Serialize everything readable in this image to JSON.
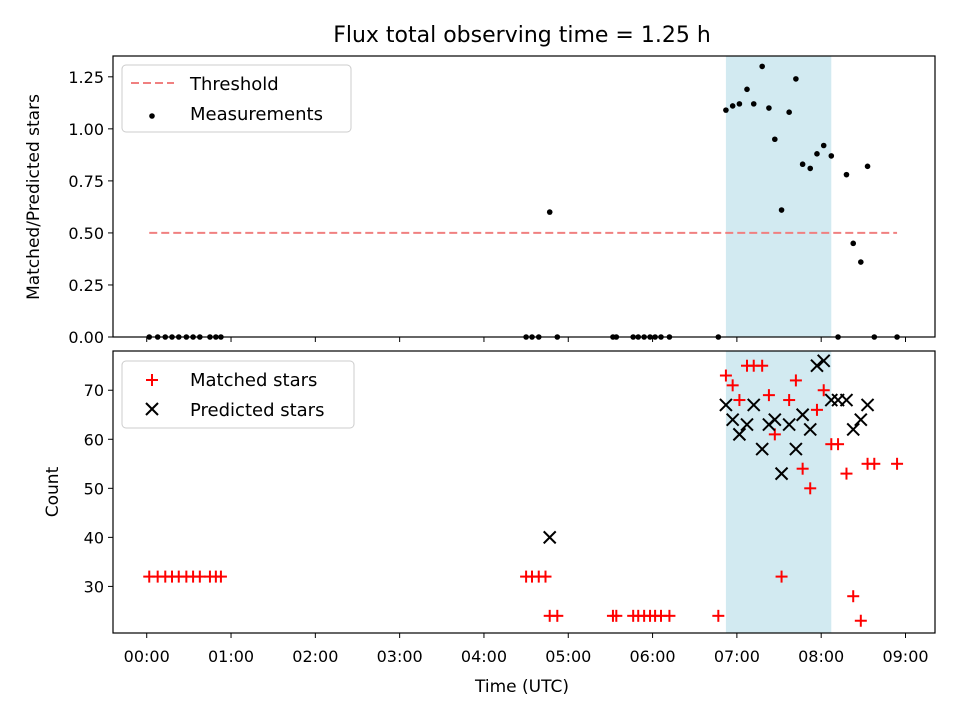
{
  "title": "Flux total observing time = 1.25 h",
  "xlabel": "Time (UTC)",
  "x_ticks": [
    "00:00",
    "01:00",
    "02:00",
    "03:00",
    "04:00",
    "05:00",
    "06:00",
    "07:00",
    "08:00",
    "09:00"
  ],
  "chart_data": [
    {
      "type": "scatter",
      "ylabel": "Matched/Predicted stars",
      "xlim_hours": [
        -0.4,
        9.35
      ],
      "ylim": [
        0,
        1.35
      ],
      "y_ticks": [
        "0.00",
        "0.25",
        "0.50",
        "0.75",
        "1.00",
        "1.25"
      ],
      "legend_position": "top-left",
      "shaded_span_hours": [
        6.87,
        8.12
      ],
      "shaded_color": "#add8e6",
      "threshold": {
        "name": "Threshold",
        "y": 0.5,
        "x_range_hours": [
          0.03,
          8.9
        ],
        "color": "#f08080",
        "style": "dashed"
      },
      "series": [
        {
          "name": "Measurements",
          "color": "#000000",
          "marker": "dot",
          "points": [
            [
              0.03,
              0
            ],
            [
              0.13,
              0
            ],
            [
              0.22,
              0
            ],
            [
              0.3,
              0
            ],
            [
              0.38,
              0
            ],
            [
              0.47,
              0
            ],
            [
              0.55,
              0
            ],
            [
              0.63,
              0
            ],
            [
              0.75,
              0
            ],
            [
              0.82,
              0
            ],
            [
              0.88,
              0
            ],
            [
              4.5,
              0
            ],
            [
              4.57,
              0
            ],
            [
              4.65,
              0
            ],
            [
              4.78,
              0.6
            ],
            [
              4.87,
              0
            ],
            [
              5.53,
              0
            ],
            [
              5.57,
              0
            ],
            [
              5.77,
              0
            ],
            [
              5.83,
              0
            ],
            [
              5.9,
              0
            ],
            [
              5.97,
              0
            ],
            [
              6.03,
              0
            ],
            [
              6.1,
              0
            ],
            [
              6.2,
              0
            ],
            [
              6.78,
              0
            ],
            [
              6.87,
              1.09
            ],
            [
              6.95,
              1.11
            ],
            [
              7.03,
              1.12
            ],
            [
              7.12,
              1.19
            ],
            [
              7.2,
              1.12
            ],
            [
              7.3,
              1.3
            ],
            [
              7.38,
              1.1
            ],
            [
              7.45,
              0.95
            ],
            [
              7.53,
              0.61
            ],
            [
              7.62,
              1.08
            ],
            [
              7.7,
              1.24
            ],
            [
              7.78,
              0.83
            ],
            [
              7.87,
              0.81
            ],
            [
              7.95,
              0.88
            ],
            [
              8.03,
              0.92
            ],
            [
              8.12,
              0.87
            ],
            [
              8.2,
              0
            ],
            [
              8.3,
              0.78
            ],
            [
              8.38,
              0.45
            ],
            [
              8.47,
              0.36
            ],
            [
              8.55,
              0.82
            ],
            [
              8.63,
              0
            ],
            [
              8.9,
              0
            ]
          ]
        }
      ]
    },
    {
      "type": "scatter",
      "ylabel": "Count",
      "xlim_hours": [
        -0.4,
        9.35
      ],
      "ylim": [
        20.5,
        78
      ],
      "y_ticks": [
        "30",
        "40",
        "50",
        "60",
        "70"
      ],
      "legend_position": "top-left",
      "shaded_span_hours": [
        6.87,
        8.12
      ],
      "shaded_color": "#add8e6",
      "series": [
        {
          "name": "Matched stars",
          "color": "#ff0000",
          "marker": "plus",
          "points": [
            [
              0.03,
              32
            ],
            [
              0.13,
              32
            ],
            [
              0.22,
              32
            ],
            [
              0.3,
              32
            ],
            [
              0.38,
              32
            ],
            [
              0.47,
              32
            ],
            [
              0.55,
              32
            ],
            [
              0.63,
              32
            ],
            [
              0.75,
              32
            ],
            [
              0.82,
              32
            ],
            [
              0.88,
              32
            ],
            [
              4.5,
              32
            ],
            [
              4.57,
              32
            ],
            [
              4.65,
              32
            ],
            [
              4.73,
              32
            ],
            [
              4.78,
              24
            ],
            [
              4.87,
              24
            ],
            [
              5.53,
              24
            ],
            [
              5.57,
              24
            ],
            [
              5.77,
              24
            ],
            [
              5.83,
              24
            ],
            [
              5.9,
              24
            ],
            [
              5.97,
              24
            ],
            [
              6.03,
              24
            ],
            [
              6.1,
              24
            ],
            [
              6.2,
              24
            ],
            [
              6.78,
              24
            ],
            [
              6.87,
              73
            ],
            [
              6.95,
              71
            ],
            [
              7.03,
              68
            ],
            [
              7.12,
              75
            ],
            [
              7.2,
              75
            ],
            [
              7.3,
              75
            ],
            [
              7.38,
              69
            ],
            [
              7.45,
              61
            ],
            [
              7.53,
              32
            ],
            [
              7.62,
              68
            ],
            [
              7.7,
              72
            ],
            [
              7.78,
              54
            ],
            [
              7.87,
              50
            ],
            [
              7.95,
              66
            ],
            [
              8.03,
              70
            ],
            [
              8.12,
              59
            ],
            [
              8.2,
              59
            ],
            [
              8.3,
              53
            ],
            [
              8.38,
              28
            ],
            [
              8.47,
              23
            ],
            [
              8.55,
              55
            ],
            [
              8.63,
              55
            ],
            [
              8.9,
              55
            ]
          ]
        },
        {
          "name": "Predicted stars",
          "color": "#000000",
          "marker": "x",
          "points": [
            [
              4.78,
              40
            ],
            [
              6.87,
              67
            ],
            [
              6.95,
              64
            ],
            [
              7.03,
              61
            ],
            [
              7.12,
              63
            ],
            [
              7.2,
              67
            ],
            [
              7.3,
              58
            ],
            [
              7.38,
              63
            ],
            [
              7.45,
              64
            ],
            [
              7.53,
              53
            ],
            [
              7.62,
              63
            ],
            [
              7.7,
              58
            ],
            [
              7.78,
              65
            ],
            [
              7.87,
              62
            ],
            [
              7.95,
              75
            ],
            [
              8.03,
              76
            ],
            [
              8.12,
              68
            ],
            [
              8.2,
              68
            ],
            [
              8.3,
              68
            ],
            [
              8.38,
              62
            ],
            [
              8.47,
              64
            ],
            [
              8.55,
              67
            ]
          ]
        }
      ]
    }
  ]
}
